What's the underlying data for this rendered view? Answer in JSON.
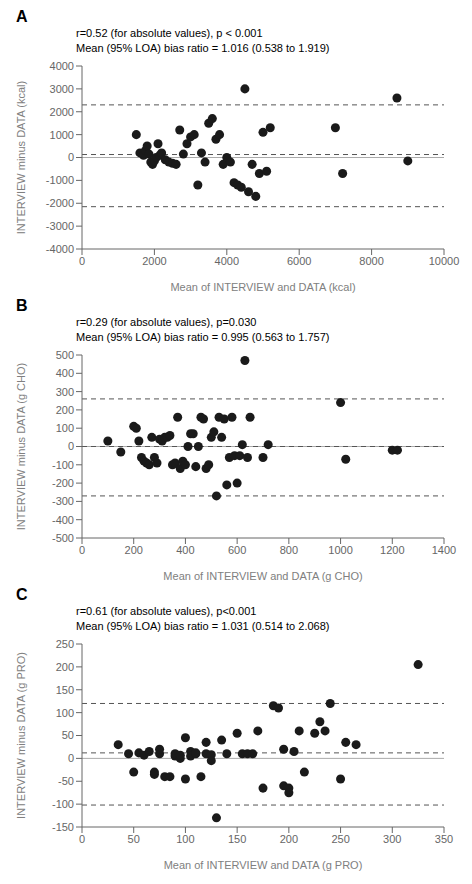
{
  "chart_data": [
    {
      "type": "scatter",
      "title": "A",
      "annotations": [
        "r=0.52 (for absolute values), p < 0.001",
        "Mean (95% LOA) bias ratio = 1.016 (0.538 to 1.919)"
      ],
      "xlabel": "Mean of INTERVIEW and DATA (kcal)",
      "ylabel": "INTERVIEW minus DATA (kcal)",
      "x": [
        1500,
        1600,
        1700,
        1750,
        1800,
        1850,
        1900,
        1950,
        2000,
        2050,
        2100,
        2150,
        2200,
        2300,
        2400,
        2500,
        2600,
        2700,
        2800,
        2900,
        3000,
        3100,
        3200,
        3300,
        3400,
        3500,
        3600,
        3700,
        3800,
        3900,
        4000,
        4100,
        4200,
        4300,
        4400,
        4500,
        4600,
        4700,
        4800,
        4900,
        5000,
        5100,
        5200,
        7000,
        7200,
        8700,
        9000
      ],
      "values": [
        1000,
        200,
        100,
        300,
        500,
        150,
        -200,
        -300,
        -150,
        0,
        600,
        100,
        200,
        -100,
        -200,
        -250,
        -300,
        1200,
        150,
        600,
        900,
        1000,
        -1200,
        200,
        -200,
        1500,
        1700,
        800,
        1000,
        -300,
        0,
        -200,
        -1100,
        -1200,
        -1300,
        3000,
        -1500,
        -300,
        -1700,
        -700,
        1100,
        -600,
        1300,
        1300,
        -700,
        2600,
        -150
      ],
      "color": "#1a1a1a",
      "marker": "circle",
      "xlim": [
        0,
        10000
      ],
      "ylim": [
        -4000,
        4000
      ],
      "xticks": [
        0,
        2000,
        4000,
        6000,
        8000,
        10000
      ],
      "yticks": [
        -4000,
        -3000,
        -2000,
        -1000,
        0,
        1000,
        2000,
        3000,
        4000
      ],
      "grid": false,
      "hlines": [
        {
          "y": 0,
          "color": "#aaaaaa",
          "line_style": "solid"
        },
        {
          "y": 130,
          "color": "#555555",
          "line_style": "dashed"
        },
        {
          "y": 2300,
          "color": "#555555",
          "line_style": "dashed"
        },
        {
          "y": -2150,
          "color": "#555555",
          "line_style": "dashed"
        }
      ]
    },
    {
      "type": "scatter",
      "title": "B",
      "annotations": [
        "r=0.29 (for absolute values), p=0.030",
        "Mean (95% LOA) bias ratio = 0.995 (0.563 to 1.757)"
      ],
      "xlabel": "Mean of INTERVIEW and DATA (g CHO)",
      "ylabel": "INTERVIEW minus DATA (g CHO)",
      "x": [
        100,
        150,
        200,
        210,
        220,
        230,
        240,
        250,
        260,
        270,
        280,
        290,
        300,
        310,
        320,
        330,
        340,
        350,
        360,
        370,
        380,
        390,
        400,
        410,
        420,
        430,
        440,
        450,
        460,
        470,
        480,
        490,
        500,
        510,
        520,
        530,
        540,
        550,
        560,
        570,
        580,
        590,
        600,
        610,
        620,
        630,
        640,
        650,
        700,
        720,
        1000,
        1020,
        1200,
        1220
      ],
      "values": [
        30,
        -30,
        110,
        100,
        30,
        -60,
        -80,
        -90,
        -100,
        50,
        -60,
        -90,
        40,
        30,
        50,
        50,
        60,
        -100,
        -90,
        160,
        -120,
        -80,
        -100,
        0,
        70,
        70,
        -110,
        0,
        160,
        150,
        -120,
        -100,
        50,
        80,
        -270,
        160,
        50,
        150,
        -210,
        -60,
        160,
        -50,
        -200,
        -50,
        10,
        470,
        -60,
        160,
        -60,
        10,
        240,
        -70,
        -20,
        -20
      ],
      "color": "#1a1a1a",
      "marker": "circle",
      "xlim": [
        0,
        1400
      ],
      "ylim": [
        -500,
        500
      ],
      "xticks": [
        0,
        200,
        400,
        600,
        800,
        1000,
        1200,
        1400
      ],
      "yticks": [
        -500,
        -400,
        -300,
        -200,
        -100,
        0,
        100,
        200,
        300,
        400,
        500
      ],
      "grid": false,
      "hlines": [
        {
          "y": 0,
          "color": "#aaaaaa",
          "line_style": "solid"
        },
        {
          "y": 0,
          "color": "#555555",
          "line_style": "dashed"
        },
        {
          "y": 260,
          "color": "#555555",
          "line_style": "dashed"
        },
        {
          "y": -270,
          "color": "#555555",
          "line_style": "dashed"
        }
      ]
    },
    {
      "type": "scatter",
      "title": "C",
      "annotations": [
        "r=0.61 (for absolute values), p<0.001",
        "Mean (95% LOA) bias ratio = 1.031 (0.514 to 2.068)"
      ],
      "xlabel": "Mean of INTERVIEW and DATA (g PRO)",
      "ylabel": "INTERVIEW minus DATA (g PRO)",
      "x": [
        35,
        45,
        50,
        55,
        60,
        65,
        70,
        70,
        75,
        75,
        80,
        85,
        90,
        90,
        95,
        95,
        100,
        100,
        105,
        105,
        110,
        110,
        115,
        120,
        120,
        125,
        125,
        130,
        135,
        140,
        150,
        155,
        160,
        165,
        170,
        175,
        185,
        190,
        195,
        195,
        200,
        200,
        205,
        210,
        215,
        225,
        230,
        235,
        240,
        250,
        255,
        265,
        325
      ],
      "values": [
        30,
        10,
        -30,
        12,
        7,
        15,
        -30,
        -35,
        10,
        20,
        -40,
        -40,
        5,
        10,
        0,
        7,
        -45,
        45,
        15,
        5,
        10,
        12,
        -40,
        35,
        10,
        8,
        -5,
        -130,
        40,
        10,
        55,
        10,
        10,
        10,
        60,
        -65,
        115,
        110,
        20,
        -60,
        -65,
        -75,
        15,
        60,
        -30,
        55,
        80,
        60,
        120,
        -45,
        35,
        30,
        205
      ],
      "color": "#1a1a1a",
      "marker": "circle",
      "xlim": [
        0,
        350
      ],
      "ylim": [
        -150,
        250
      ],
      "xticks": [
        0,
        50,
        100,
        150,
        200,
        250,
        300,
        350
      ],
      "yticks": [
        -150,
        -100,
        -50,
        0,
        50,
        100,
        150,
        200,
        250
      ],
      "grid": false,
      "hlines": [
        {
          "y": 0,
          "color": "#aaaaaa",
          "line_style": "solid"
        },
        {
          "y": 12,
          "color": "#555555",
          "line_style": "dashed"
        },
        {
          "y": 120,
          "color": "#555555",
          "line_style": "dashed"
        },
        {
          "y": -102,
          "color": "#555555",
          "line_style": "dashed"
        }
      ]
    }
  ]
}
